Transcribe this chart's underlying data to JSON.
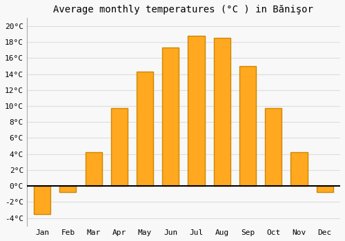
{
  "title": "Average monthly temperatures (°C ) in Bănişor",
  "months": [
    "Jan",
    "Feb",
    "Mar",
    "Apr",
    "May",
    "Jun",
    "Jul",
    "Aug",
    "Sep",
    "Oct",
    "Nov",
    "Dec"
  ],
  "values": [
    -3.5,
    -0.8,
    4.2,
    9.7,
    14.3,
    17.3,
    18.8,
    18.5,
    15.0,
    9.7,
    4.2,
    -0.8
  ],
  "bar_color": "#FFA820",
  "bar_edge_color": "#CC8800",
  "background_color": "#f8f8f8",
  "plot_bg_color": "#f8f8f8",
  "grid_color": "#dddddd",
  "ylim": [
    -5,
    21
  ],
  "yticks": [
    -4,
    -2,
    0,
    2,
    4,
    6,
    8,
    10,
    12,
    14,
    16,
    18,
    20
  ],
  "ylabel_suffix": "°C",
  "zero_line_color": "#000000",
  "title_fontsize": 10,
  "tick_fontsize": 8,
  "bar_width": 0.65
}
